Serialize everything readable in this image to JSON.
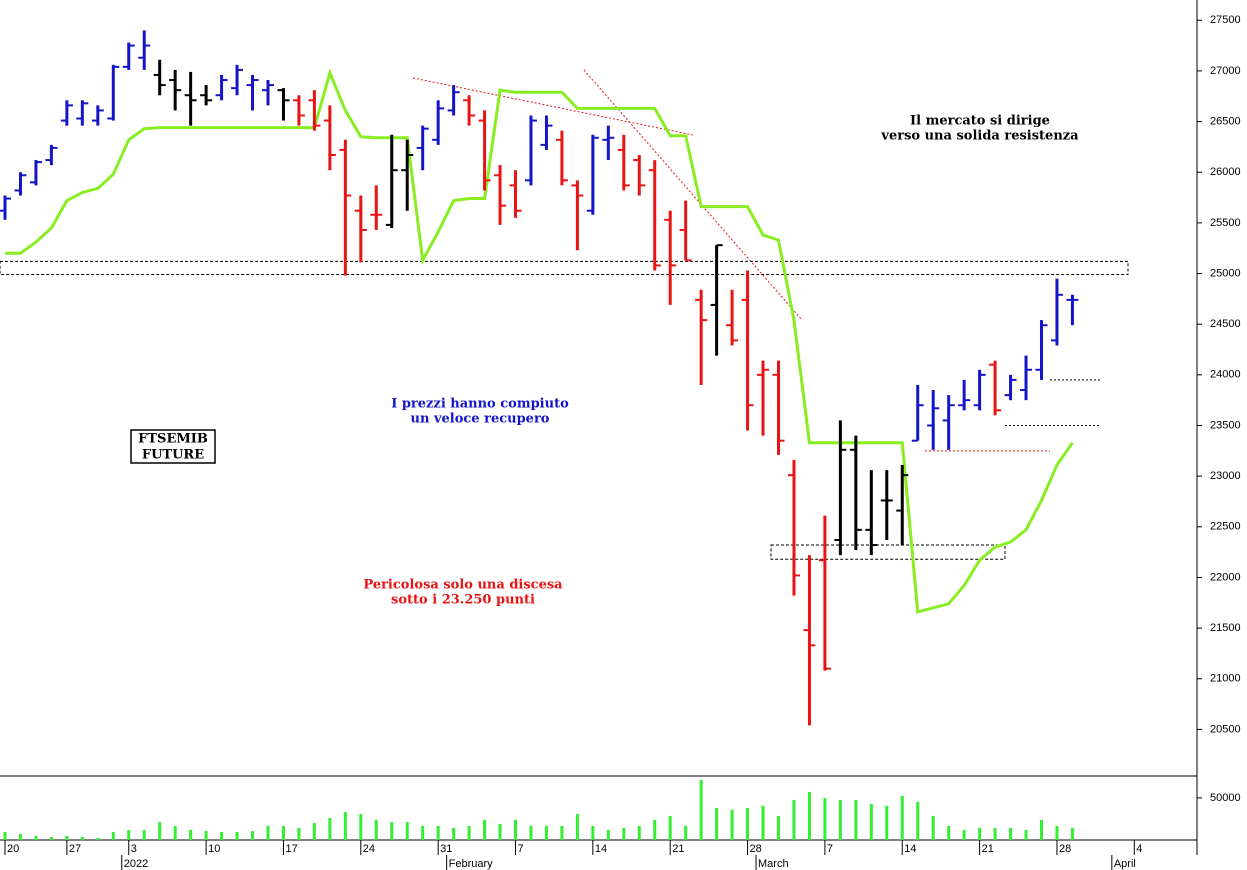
{
  "chart_data": {
    "type": "ohlc",
    "title_lines": [
      "FTSEMIB",
      "FUTURE"
    ],
    "categories": [
      "20",
      null,
      null,
      null,
      "27",
      null,
      null,
      null,
      "3",
      null,
      null,
      null,
      null,
      "10",
      null,
      null,
      null,
      null,
      "17",
      null,
      null,
      null,
      null,
      "24",
      null,
      null,
      null,
      null,
      "31",
      null,
      null,
      null,
      null,
      "7",
      null,
      null,
      null,
      null,
      "14",
      null,
      null,
      null,
      null,
      "21",
      null,
      null,
      null,
      null,
      "28",
      null,
      null,
      null,
      null,
      "7",
      null,
      null,
      null,
      null,
      "14",
      null,
      null,
      null,
      null,
      "21",
      null,
      null,
      null,
      null,
      "28",
      null,
      null,
      null,
      null,
      "4"
    ],
    "month_labels": [
      null,
      null,
      null,
      null,
      null,
      null,
      null,
      null,
      "2022",
      null,
      null,
      null,
      null,
      null,
      null,
      null,
      null,
      null,
      null,
      null,
      null,
      null,
      null,
      null,
      null,
      null,
      null,
      null,
      null,
      "February",
      null,
      null,
      null,
      null,
      null,
      null,
      null,
      null,
      null,
      null,
      null,
      null,
      null,
      null,
      null,
      null,
      null,
      null,
      null,
      "March",
      null,
      null,
      null,
      null,
      null,
      null,
      null,
      null,
      null,
      null,
      null,
      null,
      null,
      null,
      null,
      null,
      null,
      null,
      null,
      null,
      null,
      null,
      "April",
      null
    ],
    "ohlc": [
      [
        25620,
        25770,
        25530,
        25740
      ],
      [
        25820,
        26000,
        25770,
        25970
      ],
      [
        25900,
        26120,
        25870,
        26100
      ],
      [
        26120,
        26270,
        26070,
        26240
      ],
      [
        26510,
        26710,
        26460,
        26660
      ],
      [
        26530,
        26710,
        26460,
        26680
      ],
      [
        26510,
        26660,
        26460,
        26610
      ],
      [
        26530,
        27060,
        26510,
        27040
      ],
      [
        27040,
        27280,
        27010,
        27250
      ],
      [
        27130,
        27400,
        27010,
        27250
      ],
      [
        26960,
        27110,
        26760,
        26860
      ],
      [
        26910,
        27010,
        26610,
        26810
      ],
      [
        26760,
        26990,
        26460,
        26710
      ],
      [
        26760,
        26860,
        26660,
        26710
      ],
      [
        26760,
        26960,
        26710,
        26910
      ],
      [
        26830,
        27060,
        26760,
        27010
      ],
      [
        26860,
        26960,
        26610,
        26910
      ],
      [
        26810,
        26910,
        26660,
        26860
      ],
      [
        26810,
        26830,
        26510,
        26710
      ],
      [
        26710,
        26760,
        26460,
        26560
      ],
      [
        26710,
        26810,
        26410,
        26460
      ],
      [
        26510,
        26660,
        26020,
        26170
      ],
      [
        26220,
        26320,
        24980,
        25770
      ],
      [
        25620,
        25770,
        25110,
        25430
      ],
      [
        25580,
        25870,
        25430,
        25580
      ],
      [
        25480,
        26370,
        25450,
        26020
      ],
      [
        26020,
        26320,
        25620,
        26170
      ],
      [
        26240,
        26460,
        26020,
        26430
      ],
      [
        26320,
        26710,
        26270,
        26630
      ],
      [
        26610,
        26860,
        26560,
        26790
      ],
      [
        26710,
        26760,
        26460,
        26560
      ],
      [
        26510,
        26610,
        25820,
        25920
      ],
      [
        25970,
        26070,
        25480,
        25670
      ],
      [
        25870,
        26020,
        25550,
        25620
      ],
      [
        25920,
        26560,
        25870,
        26510
      ],
      [
        26270,
        26560,
        26220,
        26460
      ],
      [
        26320,
        26410,
        25870,
        25920
      ],
      [
        25870,
        25920,
        25230,
        25770
      ],
      [
        25620,
        26370,
        25580,
        26340
      ],
      [
        26320,
        26460,
        26120,
        26340
      ],
      [
        26220,
        26370,
        25820,
        25870
      ],
      [
        26120,
        26170,
        25770,
        25870
      ],
      [
        26020,
        26120,
        25030,
        25080
      ],
      [
        25530,
        25620,
        24690,
        25080
      ],
      [
        25430,
        25720,
        25130,
        25130
      ],
      [
        24740,
        24840,
        23900,
        24540
      ],
      [
        24690,
        25280,
        24190,
        25280
      ],
      [
        24490,
        24840,
        24290,
        24340
      ],
      [
        24740,
        25030,
        23450,
        23700
      ],
      [
        24000,
        24140,
        23400,
        24050
      ],
      [
        24000,
        24140,
        23210,
        23350
      ],
      [
        23010,
        23160,
        21820,
        22020
      ],
      [
        21480,
        22220,
        20540,
        21330
      ],
      [
        22170,
        22610,
        21080,
        21100
      ],
      [
        22370,
        23550,
        22220,
        23260
      ],
      [
        23260,
        23400,
        22270,
        22470
      ],
      [
        22470,
        23060,
        22220,
        22320
      ],
      [
        22760,
        23060,
        22370,
        22760
      ],
      [
        22660,
        23110,
        22320,
        23010
      ],
      [
        23350,
        23900,
        23350,
        23700
      ],
      [
        23500,
        23850,
        23260,
        23670
      ],
      [
        23550,
        23800,
        23260,
        23700
      ],
      [
        23700,
        23950,
        23650,
        23750
      ],
      [
        23700,
        24050,
        23650,
        24000
      ],
      [
        24100,
        24140,
        23600,
        23650
      ],
      [
        23800,
        24000,
        23750,
        23950
      ],
      [
        23850,
        24190,
        23750,
        24050
      ],
      [
        24050,
        24540,
        23950,
        24490
      ],
      [
        24340,
        24950,
        24290,
        24790
      ],
      [
        24740,
        24790,
        24490,
        24740
      ]
    ],
    "bar_colors": [
      "#1414c8",
      "#1414c8",
      "#1414c8",
      "#1414c8",
      "#1414c8",
      "#1414c8",
      "#1414c8",
      "#1414c8",
      "#1414c8",
      "#1414c8",
      "#000000",
      "#000000",
      "#000000",
      "#000000",
      "#1414c8",
      "#1414c8",
      "#1414c8",
      "#1414c8",
      "#000000",
      "#e81414",
      "#e81414",
      "#e81414",
      "#e81414",
      "#e81414",
      "#e81414",
      "#000000",
      "#000000",
      "#1414c8",
      "#1414c8",
      "#1414c8",
      "#e81414",
      "#e81414",
      "#e81414",
      "#e81414",
      "#1414c8",
      "#1414c8",
      "#e81414",
      "#e81414",
      "#1414c8",
      "#1414c8",
      "#e81414",
      "#e81414",
      "#e81414",
      "#e81414",
      "#e81414",
      "#e81414",
      "#000000",
      "#e81414",
      "#e81414",
      "#e81414",
      "#e81414",
      "#e81414",
      "#e81414",
      "#e81414",
      "#000000",
      "#000000",
      "#000000",
      "#000000",
      "#000000",
      "#1414c8",
      "#1414c8",
      "#1414c8",
      "#1414c8",
      "#1414c8",
      "#e81414",
      "#1414c8",
      "#1414c8",
      "#1414c8",
      "#1414c8",
      "#1414c8"
    ],
    "line": {
      "color": "#88ee22",
      "values": [
        25200,
        25200,
        25310,
        25450,
        25720,
        25800,
        25840,
        25980,
        26320,
        26430,
        26440,
        26440,
        26440,
        26440,
        26440,
        26440,
        26440,
        26440,
        26440,
        26440,
        26440,
        26980,
        26610,
        26350,
        26340,
        26340,
        26340,
        25130,
        25410,
        25720,
        25740,
        25740,
        26810,
        26790,
        26790,
        26790,
        26790,
        26630,
        26630,
        26630,
        26630,
        26630,
        26630,
        26360,
        26360,
        25660,
        25660,
        25660,
        25660,
        25380,
        25330,
        24540,
        23330,
        23330,
        23330,
        23330,
        23330,
        23330,
        23330,
        21660,
        21700,
        21740,
        21920,
        22170,
        22300,
        22350,
        22470,
        22760,
        23110,
        23330
      ]
    },
    "ylim": [
      20050,
      27700
    ],
    "yticks": [
      20500,
      21000,
      21500,
      22000,
      22500,
      23000,
      23500,
      24000,
      24500,
      25000,
      25500,
      26000,
      26500,
      27000,
      27500
    ],
    "volume": {
      "color": "#33ee33",
      "ylim": [
        0,
        76000
      ],
      "yticks": [
        50000
      ],
      "values": [
        9500,
        7100,
        4800,
        3600,
        4800,
        3600,
        2400,
        9500,
        11900,
        11900,
        21400,
        16700,
        11900,
        10700,
        9500,
        9500,
        10700,
        16700,
        16700,
        14300,
        20200,
        26200,
        33300,
        30900,
        23800,
        21400,
        21400,
        16700,
        16700,
        14300,
        16700,
        23800,
        19000,
        23800,
        16700,
        16700,
        16700,
        30900,
        16700,
        11900,
        14300,
        16700,
        23800,
        28600,
        16700,
        71400,
        38100,
        35700,
        38100,
        40500,
        28600,
        47600,
        57100,
        50000,
        47600,
        47600,
        42800,
        40500,
        52400,
        45200,
        28600,
        16700,
        11900,
        14300,
        14300,
        14300,
        11900,
        23800,
        16700,
        14300
      ]
    },
    "zones": [
      [
        24990,
        25120
      ],
      [
        22180,
        22320
      ]
    ],
    "levels": [
      {
        "value": 23950,
        "color": "#000000"
      },
      {
        "value": 23500,
        "color": "#000000"
      },
      {
        "value": 23250,
        "color": "#e81414"
      }
    ],
    "annotations": [
      {
        "lines": [
          "Il mercato si dirige",
          "verso una solida resistenza"
        ],
        "color": "#000000"
      },
      {
        "lines": [
          "I prezzi hanno compiuto",
          "un veloce recupero"
        ],
        "color": "#1414c8"
      },
      {
        "lines": [
          "Pericolosa solo una discesa",
          "sotto i 23.250 punti"
        ],
        "color": "#e81414"
      }
    ]
  }
}
